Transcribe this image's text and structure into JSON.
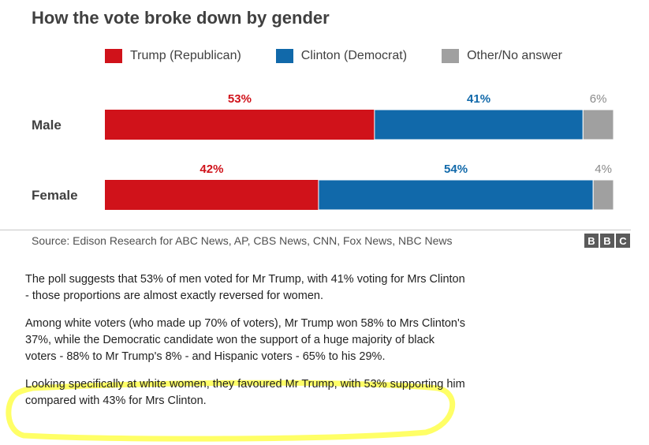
{
  "chart_data": {
    "type": "bar",
    "stacked": true,
    "orientation": "horizontal",
    "title": "How the vote broke down by gender",
    "categories": [
      "Male",
      "Female"
    ],
    "series": [
      {
        "name": "Trump (Republican)",
        "color": "#d0121a",
        "values": [
          53,
          42
        ]
      },
      {
        "name": "Clinton (Democrat)",
        "color": "#1169aa",
        "values": [
          41,
          54
        ]
      },
      {
        "name": "Other/No answer",
        "color": "#a0a0a0",
        "values": [
          6,
          4
        ]
      }
    ],
    "data_labels": [
      [
        "53%",
        "41%",
        "6%"
      ],
      [
        "42%",
        "54%",
        "4%"
      ]
    ],
    "xlim": [
      0,
      100
    ],
    "legend": "top",
    "grid": false,
    "source": "Source: Edison Research for ABC News, AP, CBS News, CNN, Fox News, NBC News"
  },
  "logo": {
    "letters": [
      "B",
      "B",
      "C"
    ]
  },
  "article": {
    "paragraphs": [
      "The poll suggests that 53% of men voted for Mr Trump, with 41% voting for Mrs Clinton - those proportions are almost exactly reversed for women.",
      "Among white voters (who made up 70% of voters), Mr Trump won 58% to Mrs Clinton's 37%, while the Democratic candidate won the support of a huge majority of black voters - 88% to Mr Trump's 8% - and Hispanic voters - 65% to his 29%.",
      "Looking specifically at white women, they favoured Mr Trump, with 53% supporting him compared with 43% for Mrs Clinton."
    ],
    "highlight_color": "#ffff66"
  }
}
